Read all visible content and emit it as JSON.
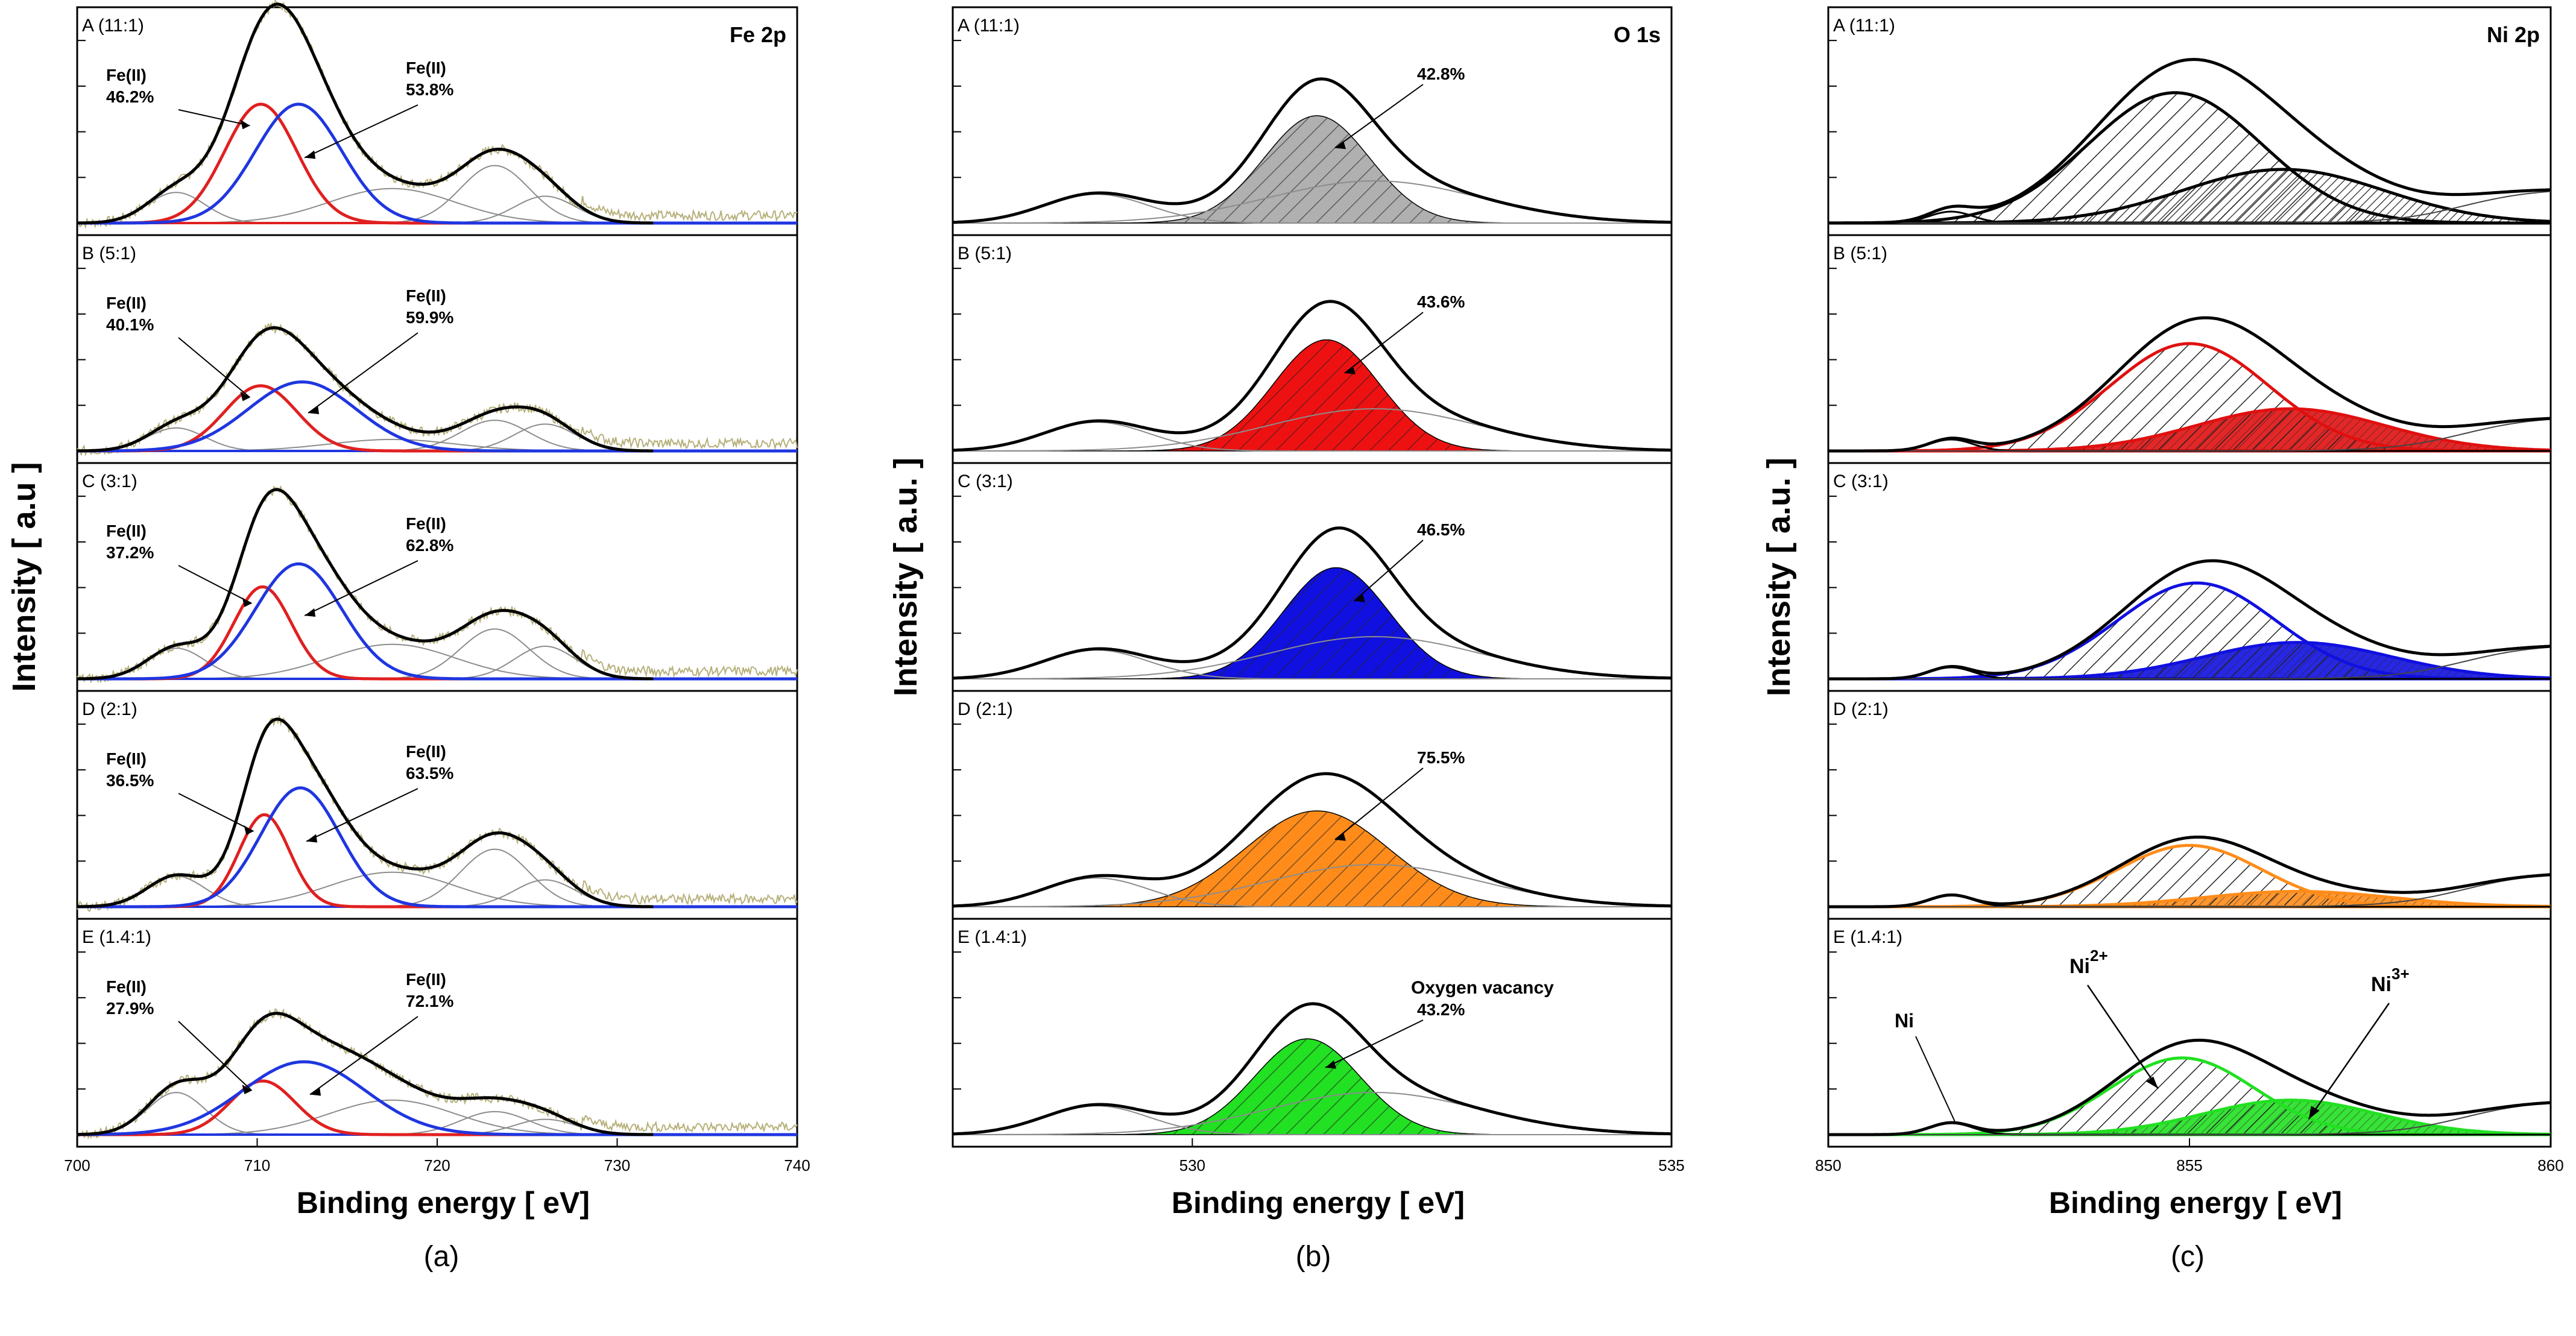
{
  "chart_data": [
    {
      "type": "line",
      "subfigure": "(a)",
      "element_label": "Fe 2p",
      "xlabel": "Binding energy [ eV]",
      "ylabel": "Intensity [ a.u ]",
      "xlim": [
        700,
        740
      ],
      "xticks": [
        700,
        710,
        720,
        730,
        740
      ],
      "xtick_labels": [
        "700",
        "710",
        "720",
        "730",
        "740"
      ],
      "panels": [
        {
          "label": "A (11:1)",
          "fit": "red-blue",
          "peaks": [
            {
              "name": "Fe(II)",
              "value": "46.2%",
              "center": 710.2,
              "height": 0.62,
              "width": 2.0,
              "color": "#e02020"
            },
            {
              "name": "Fe(II)",
              "value": "53.8%",
              "center": 712.3,
              "height": 0.62,
              "width": 2.4,
              "color": "#1f36e0"
            }
          ]
        },
        {
          "label": "B (5:1)",
          "fit": "red-blue",
          "peaks": [
            {
              "name": "Fe(II)",
              "value": "40.1%",
              "center": 710.2,
              "height": 0.34,
              "width": 2.0,
              "color": "#e02020"
            },
            {
              "name": "Fe(II)",
              "value": "59.9%",
              "center": 712.5,
              "height": 0.36,
              "width": 3.0,
              "color": "#1f36e0"
            }
          ]
        },
        {
          "label": "C (3:1)",
          "fit": "red-blue",
          "peaks": [
            {
              "name": "Fe(II)",
              "value": "37.2%",
              "center": 710.3,
              "height": 0.48,
              "width": 1.6,
              "color": "#e02020"
            },
            {
              "name": "Fe(II)",
              "value": "62.8%",
              "center": 712.3,
              "height": 0.6,
              "width": 2.4,
              "color": "#1f36e0"
            }
          ]
        },
        {
          "label": "D (2:1)",
          "fit": "red-blue",
          "peaks": [
            {
              "name": "Fe(II)",
              "value": "36.5%",
              "center": 710.4,
              "height": 0.48,
              "width": 1.4,
              "color": "#e02020"
            },
            {
              "name": "Fe(II)",
              "value": "63.5%",
              "center": 712.4,
              "height": 0.62,
              "width": 2.2,
              "color": "#1f36e0"
            }
          ]
        },
        {
          "label": "E (1.4:1)",
          "fit": "red-blue",
          "peaks": [
            {
              "name": "Fe(II)",
              "value": "27.9%",
              "center": 710.3,
              "height": 0.28,
              "width": 1.8,
              "color": "#e02020"
            },
            {
              "name": "Fe(II)",
              "value": "72.1%",
              "center": 712.6,
              "height": 0.38,
              "width": 3.4,
              "color": "#1f36e0"
            }
          ]
        }
      ]
    },
    {
      "type": "line",
      "subfigure": "(b)",
      "element_label": "O 1s",
      "xlabel": "Binding energy [ eV]",
      "ylabel": "Intensity [ a.u. ]",
      "xlim": [
        527.5,
        535
      ],
      "xticks": [
        530,
        535
      ],
      "xtick_labels": [
        "530",
        "535"
      ],
      "panels": [
        {
          "label": "A (11:1)",
          "fill": "#b0b0b0",
          "annotation": "42.8%",
          "peak": {
            "center": 531.3,
            "height": 0.56,
            "width": 0.55
          }
        },
        {
          "label": "B (5:1)",
          "fill": "#ee1111",
          "annotation": "43.6%",
          "peak": {
            "center": 531.4,
            "height": 0.58,
            "width": 0.55
          }
        },
        {
          "label": "C (3:1)",
          "fill": "#1010e0",
          "annotation": "46.5%",
          "peak": {
            "center": 531.5,
            "height": 0.58,
            "width": 0.55
          }
        },
        {
          "label": "D (2:1)",
          "fill": "#ff8c1a",
          "annotation": "75.5%",
          "peak": {
            "center": 531.3,
            "height": 0.5,
            "width": 0.75
          }
        },
        {
          "label": "E (1.4:1)",
          "fill": "#22e022",
          "annotation_title": "Oxygen vacancy",
          "annotation": "43.2%",
          "peak": {
            "center": 531.2,
            "height": 0.5,
            "width": 0.55
          }
        }
      ]
    },
    {
      "type": "line",
      "subfigure": "(c)",
      "element_label": "Ni 2p",
      "xlabel": "Binding energy [ eV]",
      "ylabel": "Intensity [ a.u. ]",
      "xlim": [
        850,
        860
      ],
      "xticks": [
        850,
        855,
        860
      ],
      "xtick_labels": [
        "850",
        "855",
        "860"
      ],
      "panels": [
        {
          "label": "A (11:1)",
          "line": "#000000",
          "fill": "#000000",
          "ni2": {
            "center": 854.8,
            "height": 0.68,
            "width": 1.2
          },
          "ni3": {
            "center": 856.3,
            "height": 0.28,
            "width": 1.4
          }
        },
        {
          "label": "B (5:1)",
          "line": "#e01010",
          "fill": "#e01010",
          "ni2": {
            "center": 855.0,
            "height": 0.56,
            "width": 1.1
          },
          "ni3": {
            "center": 856.4,
            "height": 0.22,
            "width": 1.3
          }
        },
        {
          "label": "C (3:1)",
          "line": "#1010e0",
          "fill": "#1010e0",
          "ni2": {
            "center": 855.1,
            "height": 0.5,
            "width": 1.1
          },
          "ni3": {
            "center": 856.5,
            "height": 0.19,
            "width": 1.3
          }
        },
        {
          "label": "D (2:1)",
          "line": "#ff8c1a",
          "fill": "#ff8c1a",
          "ni2": {
            "center": 855.0,
            "height": 0.32,
            "width": 1.0
          },
          "ni3": {
            "center": 856.5,
            "height": 0.08,
            "width": 1.3
          }
        },
        {
          "label": "E (1.4:1)",
          "line": "#22e022",
          "fill": "#22e022",
          "ni2": {
            "center": 854.9,
            "height": 0.4,
            "width": 1.0
          },
          "ni3": {
            "center": 856.4,
            "height": 0.18,
            "width": 1.2
          },
          "annotations": [
            "Ni",
            "Ni",
            "2+",
            "Ni",
            "3+"
          ]
        }
      ]
    }
  ]
}
